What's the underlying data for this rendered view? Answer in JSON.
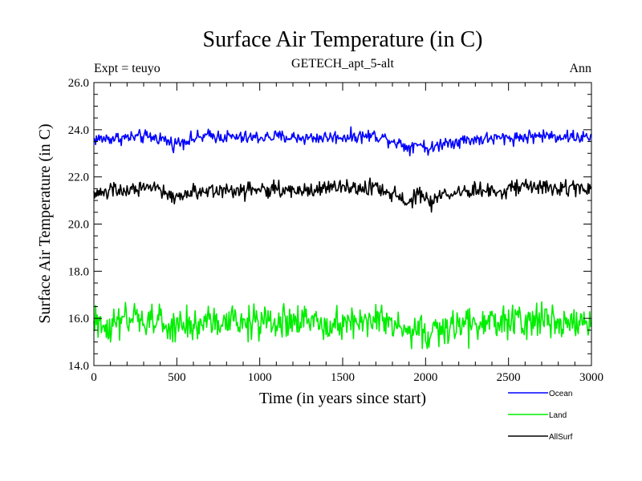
{
  "chart_data": {
    "type": "line",
    "title": "Surface Air Temperature (in C)",
    "subtitle": "GETECH_apt_5-alt",
    "left_label": "Expt = teuyo",
    "right_label": "Ann",
    "xlabel": "Time (in years since start)",
    "ylabel": "Surface Air Temperature (in C)",
    "xlim": [
      0,
      3000
    ],
    "ylim": [
      14,
      26
    ],
    "x_ticks": [
      0,
      500,
      1000,
      1500,
      2000,
      2500,
      3000
    ],
    "x_tick_labels": [
      "0",
      "500",
      "1000",
      "1500",
      "2000",
      "2500",
      "3000"
    ],
    "y_ticks": [
      14,
      16,
      18,
      20,
      22,
      24,
      26
    ],
    "y_tick_labels": [
      "14.0",
      "16.0",
      "18.0",
      "20.0",
      "22.0",
      "24.0",
      "26.0"
    ],
    "grid": false,
    "legend_position": "bottom-right",
    "x_step": 5,
    "series": [
      {
        "name": "Ocean",
        "color": "#0000ff",
        "mean": 23.6,
        "noise": 0.28,
        "profile": [
          [
            0,
            23.6
          ],
          [
            300,
            23.7
          ],
          [
            400,
            23.65
          ],
          [
            480,
            23.4
          ],
          [
            550,
            23.55
          ],
          [
            700,
            23.75
          ],
          [
            900,
            23.65
          ],
          [
            1100,
            23.7
          ],
          [
            1300,
            23.65
          ],
          [
            1500,
            23.7
          ],
          [
            1700,
            23.75
          ],
          [
            1800,
            23.55
          ],
          [
            1900,
            23.25
          ],
          [
            1950,
            23.45
          ],
          [
            2030,
            23.15
          ],
          [
            2100,
            23.45
          ],
          [
            2300,
            23.6
          ],
          [
            2500,
            23.65
          ],
          [
            2700,
            23.75
          ],
          [
            2900,
            23.7
          ],
          [
            3000,
            23.65
          ]
        ]
      },
      {
        "name": "Land",
        "color": "#00ee00",
        "mean": 15.8,
        "noise": 0.75,
        "profile": [
          [
            0,
            15.7
          ],
          [
            300,
            15.9
          ],
          [
            400,
            15.85
          ],
          [
            480,
            15.5
          ],
          [
            550,
            15.7
          ],
          [
            700,
            15.85
          ],
          [
            900,
            15.8
          ],
          [
            1100,
            15.85
          ],
          [
            1300,
            15.85
          ],
          [
            1500,
            15.85
          ],
          [
            1700,
            15.95
          ],
          [
            1800,
            15.7
          ],
          [
            1900,
            15.3
          ],
          [
            1950,
            15.6
          ],
          [
            2030,
            15.2
          ],
          [
            2100,
            15.6
          ],
          [
            2300,
            15.75
          ],
          [
            2500,
            15.85
          ],
          [
            2700,
            15.95
          ],
          [
            2900,
            15.85
          ],
          [
            3000,
            15.8
          ]
        ]
      },
      {
        "name": "AllSurf",
        "color": "#000000",
        "mean": 21.4,
        "noise": 0.35,
        "profile": [
          [
            0,
            21.3
          ],
          [
            300,
            21.5
          ],
          [
            400,
            21.45
          ],
          [
            480,
            21.1
          ],
          [
            550,
            21.3
          ],
          [
            700,
            21.45
          ],
          [
            900,
            21.45
          ],
          [
            1100,
            21.45
          ],
          [
            1300,
            21.45
          ],
          [
            1500,
            21.5
          ],
          [
            1700,
            21.55
          ],
          [
            1800,
            21.3
          ],
          [
            1900,
            20.95
          ],
          [
            1950,
            21.25
          ],
          [
            2030,
            20.85
          ],
          [
            2100,
            21.25
          ],
          [
            2300,
            21.4
          ],
          [
            2500,
            21.5
          ],
          [
            2700,
            21.6
          ],
          [
            2900,
            21.5
          ],
          [
            3000,
            21.45
          ]
        ]
      }
    ]
  }
}
